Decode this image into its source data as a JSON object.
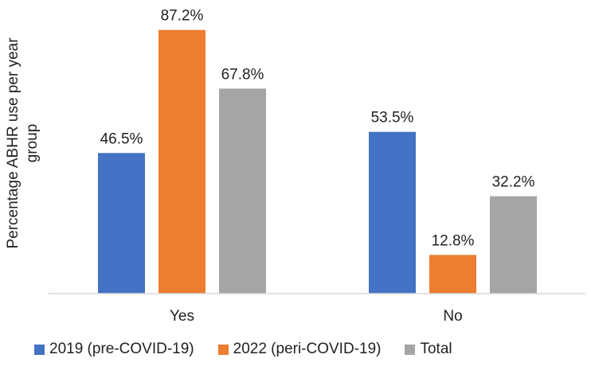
{
  "chart_data": {
    "type": "bar",
    "title": "",
    "xlabel": "",
    "ylabel": "Percentage ABHR use per year group",
    "ylabel_lines": [
      "Percentage ABHR use per year",
      "group"
    ],
    "categories": [
      "Yes",
      "No"
    ],
    "series": [
      {
        "name": "2019 (pre-COVID-19)",
        "color": "#4472C4",
        "values": [
          46.5,
          53.5
        ],
        "labels": [
          "46.5%",
          "53.5%"
        ]
      },
      {
        "name": "2022 (peri-COVID-19)",
        "color": "#ED7D31",
        "values": [
          87.2,
          12.8
        ],
        "labels": [
          "87.2%",
          "12.8%"
        ]
      },
      {
        "name": "Total",
        "color": "#A5A5A5",
        "values": [
          67.8,
          32.2
        ],
        "labels": [
          "67.8%",
          "32.2%"
        ]
      }
    ],
    "ylim": [
      0,
      100
    ],
    "grid": false,
    "legend_position": "bottom"
  }
}
